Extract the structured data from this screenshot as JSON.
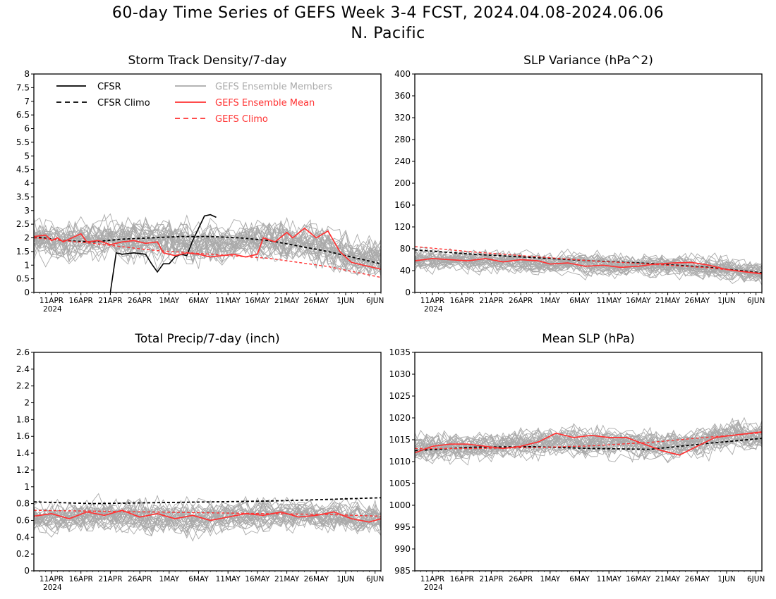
{
  "figure": {
    "title_line1": "60-day Time Series of GEFS Week 3-4 FCST, 2024.04.08-2024.06.06",
    "title_line2": "N. Pacific"
  },
  "x_axis": {
    "tick_labels": [
      "11APR",
      "16APR",
      "21APR",
      "26APR",
      "1MAY",
      "6MAY",
      "11MAY",
      "16MAY",
      "21MAY",
      "26MAY",
      "1JUN",
      "6JUN"
    ],
    "year_label": "2024",
    "date_range": [
      "2024-04-08",
      "2024-06-06"
    ]
  },
  "legend": {
    "cfsr": "CFSR",
    "cfsr_climo": "CFSR Climo",
    "members": "GEFS Ensemble Members",
    "mean": "GEFS Ensemble Mean",
    "gefs_climo": "GEFS Climo",
    "placement": "top-left of first panel"
  },
  "colors": {
    "cfsr": "#000000",
    "members": "#aaaaaa",
    "mean": "#ff3333",
    "gefs_climo": "#ff3333"
  },
  "chart_data": [
    {
      "type": "line",
      "title": "Storm Track Density/7-day",
      "ylim": [
        0,
        8
      ],
      "yticks": [
        "0",
        "0.5",
        "1",
        "1.5",
        "2",
        "2.5",
        "3",
        "3.5",
        "4",
        "4.5",
        "5",
        "5.5",
        "6",
        "6.5",
        "7",
        "7.5",
        "8"
      ],
      "grid": false,
      "members_band": {
        "center": [
          1.9,
          1.8,
          1.9,
          1.9,
          1.9,
          1.9,
          1.8,
          1.8,
          1.9,
          1.9,
          1.9,
          1.6,
          1.4,
          1.2
        ],
        "spread": 1.1,
        "count": 31
      },
      "series": [
        {
          "name": "CFSR",
          "x": [
            "2024-04-21",
            "2024-04-22",
            "2024-04-23",
            "2024-04-25",
            "2024-04-27",
            "2024-04-28",
            "2024-04-29",
            "2024-04-30",
            "2024-05-01",
            "2024-05-02",
            "2024-05-03",
            "2024-05-04",
            "2024-05-05",
            "2024-05-06",
            "2024-05-07",
            "2024-05-08",
            "2024-05-09"
          ],
          "y": [
            0,
            1.45,
            1.4,
            1.45,
            1.4,
            1.05,
            0.75,
            1.05,
            1.05,
            1.3,
            1.4,
            1.35,
            1.9,
            2.35,
            2.8,
            2.85,
            2.75
          ]
        },
        {
          "name": "CFSR Climo",
          "x": [
            "2024-04-08",
            "2024-04-13",
            "2024-04-18",
            "2024-04-23",
            "2024-04-28",
            "2024-05-03",
            "2024-05-08",
            "2024-05-13",
            "2024-05-18",
            "2024-05-23",
            "2024-05-28",
            "2024-06-02",
            "2024-06-06"
          ],
          "y": [
            2.05,
            1.9,
            1.85,
            1.95,
            2.0,
            2.05,
            2.05,
            2.0,
            1.9,
            1.7,
            1.5,
            1.25,
            1.05
          ]
        },
        {
          "name": "GEFS Ensemble Mean",
          "x": [
            "2024-04-08",
            "2024-04-10",
            "2024-04-11",
            "2024-04-12",
            "2024-04-13",
            "2024-04-14",
            "2024-04-16",
            "2024-04-17",
            "2024-04-19",
            "2024-04-21",
            "2024-04-23",
            "2024-04-25",
            "2024-04-27",
            "2024-04-29",
            "2024-04-30",
            "2024-05-02",
            "2024-05-04",
            "2024-05-06",
            "2024-05-08",
            "2024-05-10",
            "2024-05-12",
            "2024-05-14",
            "2024-05-16",
            "2024-05-17",
            "2024-05-19",
            "2024-05-21",
            "2024-05-22",
            "2024-05-24",
            "2024-05-26",
            "2024-05-28",
            "2024-05-30",
            "2024-06-01",
            "2024-06-03",
            "2024-06-05",
            "2024-06-06"
          ],
          "y": [
            2.05,
            2.1,
            1.9,
            2.0,
            1.85,
            1.95,
            2.15,
            1.85,
            1.9,
            1.75,
            1.85,
            1.9,
            1.8,
            1.85,
            1.45,
            1.35,
            1.45,
            1.4,
            1.3,
            1.35,
            1.4,
            1.3,
            1.4,
            2.0,
            1.85,
            2.2,
            2.0,
            2.35,
            2.0,
            2.25,
            1.5,
            1.1,
            1.0,
            0.9,
            0.85
          ]
        },
        {
          "name": "GEFS Climo",
          "x": [
            "2024-04-08",
            "2024-04-18",
            "2024-04-28",
            "2024-05-08",
            "2024-05-18",
            "2024-05-28",
            "2024-06-06"
          ],
          "y": [
            2.0,
            1.8,
            1.55,
            1.4,
            1.25,
            0.95,
            0.55
          ]
        }
      ]
    },
    {
      "type": "line",
      "title": "SLP Variance (hPa^2)",
      "ylim": [
        0,
        400
      ],
      "yticks": [
        "0",
        "40",
        "80",
        "120",
        "160",
        "200",
        "240",
        "280",
        "320",
        "360",
        "400"
      ],
      "grid": false,
      "members_band": {
        "center": [
          62,
          60,
          58,
          57,
          55,
          54,
          52,
          50,
          50,
          49,
          48,
          46,
          42,
          36
        ],
        "spread": 30,
        "count": 31
      },
      "series": [
        {
          "name": "CFSR Climo",
          "x": [
            "2024-04-08",
            "2024-04-18",
            "2024-04-28",
            "2024-05-08",
            "2024-05-18",
            "2024-05-28",
            "2024-06-06"
          ],
          "y": [
            78,
            70,
            64,
            58,
            53,
            46,
            36
          ]
        },
        {
          "name": "GEFS Ensemble Mean",
          "x": [
            "2024-04-08",
            "2024-04-11",
            "2024-04-14",
            "2024-04-17",
            "2024-04-20",
            "2024-04-23",
            "2024-04-26",
            "2024-04-29",
            "2024-05-01",
            "2024-05-04",
            "2024-05-07",
            "2024-05-10",
            "2024-05-13",
            "2024-05-16",
            "2024-05-19",
            "2024-05-22",
            "2024-05-25",
            "2024-05-28",
            "2024-05-31",
            "2024-06-03",
            "2024-06-06"
          ],
          "y": [
            58,
            62,
            60,
            58,
            62,
            56,
            60,
            58,
            52,
            54,
            48,
            50,
            46,
            48,
            52,
            54,
            55,
            50,
            42,
            38,
            34
          ]
        },
        {
          "name": "GEFS Climo",
          "x": [
            "2024-04-08",
            "2024-04-18",
            "2024-04-28",
            "2024-05-08",
            "2024-05-18",
            "2024-05-28",
            "2024-06-06"
          ],
          "y": [
            84,
            74,
            66,
            58,
            52,
            45,
            35
          ]
        }
      ]
    },
    {
      "type": "line",
      "title": "Total Precip/7-day (inch)",
      "ylim": [
        0,
        2.6
      ],
      "yticks": [
        "0",
        "0.2",
        "0.4",
        "0.6",
        "0.8",
        "1",
        "1.2",
        "1.4",
        "1.6",
        "1.8",
        "2",
        "2.2",
        "2.4",
        "2.6"
      ],
      "grid": false,
      "members_band": {
        "center": [
          0.65,
          0.64,
          0.65,
          0.66,
          0.65,
          0.64,
          0.63,
          0.65,
          0.66,
          0.67,
          0.66,
          0.65,
          0.63,
          0.6
        ],
        "spread": 0.28,
        "count": 31
      },
      "series": [
        {
          "name": "CFSR Climo",
          "x": [
            "2024-04-08",
            "2024-04-18",
            "2024-04-28",
            "2024-05-08",
            "2024-05-18",
            "2024-05-28",
            "2024-06-06"
          ],
          "y": [
            0.82,
            0.8,
            0.81,
            0.82,
            0.83,
            0.85,
            0.87
          ]
        },
        {
          "name": "GEFS Ensemble Mean",
          "x": [
            "2024-04-08",
            "2024-04-11",
            "2024-04-14",
            "2024-04-17",
            "2024-04-20",
            "2024-04-23",
            "2024-04-26",
            "2024-04-29",
            "2024-05-02",
            "2024-05-05",
            "2024-05-08",
            "2024-05-11",
            "2024-05-14",
            "2024-05-17",
            "2024-05-20",
            "2024-05-23",
            "2024-05-26",
            "2024-05-29",
            "2024-06-01",
            "2024-06-04",
            "2024-06-06"
          ],
          "y": [
            0.65,
            0.68,
            0.62,
            0.7,
            0.66,
            0.72,
            0.64,
            0.68,
            0.62,
            0.66,
            0.6,
            0.64,
            0.68,
            0.66,
            0.7,
            0.64,
            0.66,
            0.7,
            0.62,
            0.58,
            0.62
          ]
        },
        {
          "name": "GEFS Climo",
          "x": [
            "2024-04-08",
            "2024-04-18",
            "2024-04-28",
            "2024-05-08",
            "2024-05-18",
            "2024-05-28",
            "2024-06-06"
          ],
          "y": [
            0.72,
            0.71,
            0.7,
            0.69,
            0.68,
            0.67,
            0.65
          ]
        }
      ]
    },
    {
      "type": "line",
      "title": "Mean SLP (hPa)",
      "ylim": [
        985,
        1035
      ],
      "yticks": [
        "985",
        "990",
        "995",
        "1000",
        "1005",
        "1010",
        "1015",
        "1020",
        "1025",
        "1030",
        "1035"
      ],
      "grid": false,
      "members_band": {
        "center": [
          1013,
          1013.5,
          1013.5,
          1014,
          1014,
          1014.5,
          1014.5,
          1014.5,
          1014,
          1013.5,
          1014,
          1015,
          1016,
          1016
        ],
        "spread": 5,
        "count": 31
      },
      "series": [
        {
          "name": "CFSR Climo",
          "x": [
            "2024-04-08",
            "2024-04-18",
            "2024-04-28",
            "2024-05-08",
            "2024-05-18",
            "2024-05-28",
            "2024-06-06"
          ],
          "y": [
            1012.5,
            1013.3,
            1013.4,
            1013.0,
            1012.8,
            1014.2,
            1015.3
          ]
        },
        {
          "name": "GEFS Ensemble Mean",
          "x": [
            "2024-04-08",
            "2024-04-11",
            "2024-04-14",
            "2024-04-17",
            "2024-04-20",
            "2024-04-23",
            "2024-04-26",
            "2024-04-29",
            "2024-05-02",
            "2024-05-05",
            "2024-05-08",
            "2024-05-11",
            "2024-05-14",
            "2024-05-17",
            "2024-05-20",
            "2024-05-23",
            "2024-05-26",
            "2024-05-29",
            "2024-06-01",
            "2024-06-04",
            "2024-06-06"
          ],
          "y": [
            1012.0,
            1013.5,
            1014.0,
            1014.0,
            1013.5,
            1013.0,
            1013.5,
            1014.5,
            1016.5,
            1015.5,
            1016.0,
            1015.5,
            1015.5,
            1014.0,
            1012.5,
            1011.5,
            1013.5,
            1015.5,
            1016.0,
            1016.5,
            1016.8
          ]
        },
        {
          "name": "GEFS Climo",
          "x": [
            "2024-04-08",
            "2024-04-18",
            "2024-04-28",
            "2024-05-08",
            "2024-05-18",
            "2024-05-28",
            "2024-06-06"
          ],
          "y": [
            1013.0,
            1013.0,
            1013.2,
            1013.6,
            1014.4,
            1015.6,
            1016.6
          ]
        }
      ]
    }
  ]
}
